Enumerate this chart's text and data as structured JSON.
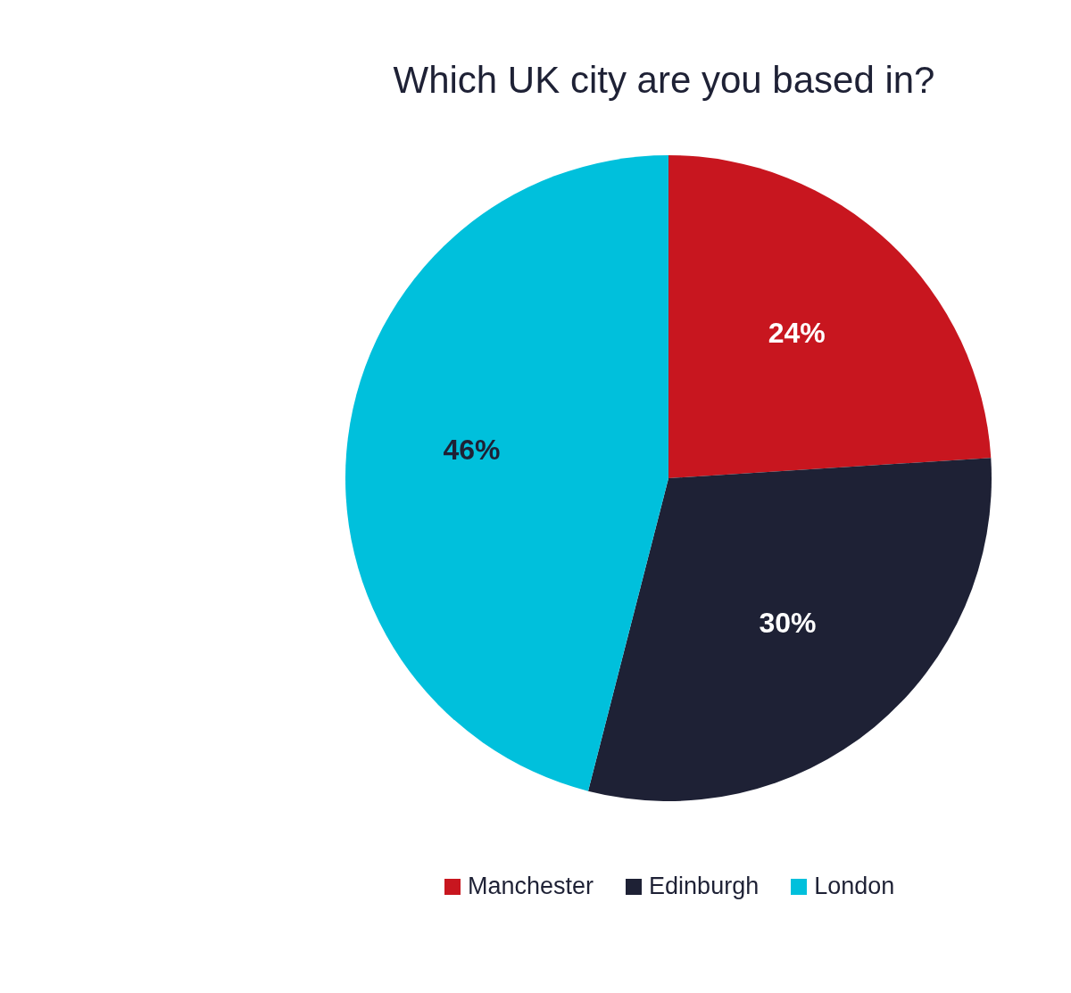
{
  "chart_data": {
    "type": "pie",
    "title": "Which UK city are you based in?",
    "categories": [
      "Manchester",
      "Edinburgh",
      "London"
    ],
    "values": [
      24,
      30,
      46
    ],
    "colors": [
      "#c8161f",
      "#1e2135",
      "#00c0dc"
    ],
    "value_labels": [
      "24%",
      "30%",
      "46%"
    ],
    "legend": "bottom"
  }
}
